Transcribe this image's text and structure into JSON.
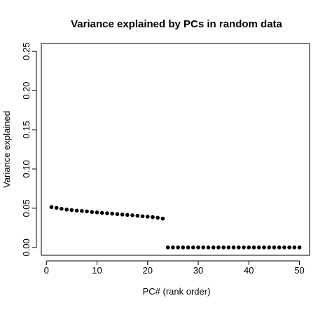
{
  "chart_data": {
    "type": "scatter",
    "title": "Variance explained by PCs in random data",
    "xlabel": "PC# (rank order)",
    "ylabel": "Variance explained",
    "xlim": [
      -1,
      52
    ],
    "ylim": [
      -0.01,
      0.26
    ],
    "x_ticks": [
      0,
      10,
      20,
      30,
      40,
      50
    ],
    "x_tick_labels": [
      "0",
      "10",
      "20",
      "30",
      "40",
      "50"
    ],
    "y_ticks": [
      0.0,
      0.05,
      0.1,
      0.15,
      0.2,
      0.25
    ],
    "y_tick_labels": [
      "0.00",
      "0.05",
      "0.10",
      "0.15",
      "0.20",
      "0.25"
    ],
    "grid": false,
    "marker_color": "#000000",
    "series": [
      {
        "x": [
          1,
          2,
          3,
          4,
          5,
          6,
          7,
          8,
          9,
          10,
          11,
          12,
          13,
          14,
          15,
          16,
          17,
          18,
          19,
          20,
          21,
          22,
          23,
          24,
          25,
          26,
          27,
          28,
          29,
          30,
          31,
          32,
          33,
          34,
          35,
          36,
          37,
          38,
          39,
          40,
          41,
          42,
          43,
          44,
          45,
          46,
          47,
          48,
          49,
          50
        ],
        "values": [
          0.0515,
          0.0505,
          0.0493,
          0.0483,
          0.0476,
          0.047,
          0.0465,
          0.046,
          0.0452,
          0.0447,
          0.0441,
          0.0436,
          0.0431,
          0.0425,
          0.042,
          0.0415,
          0.041,
          0.0404,
          0.0398,
          0.0393,
          0.0387,
          0.0379,
          0.0368,
          0,
          0,
          0,
          0,
          0,
          0,
          0,
          0,
          0,
          0,
          0,
          0,
          0,
          0,
          0,
          0,
          0,
          0,
          0,
          0,
          0,
          0,
          0,
          0,
          0,
          0,
          0
        ]
      }
    ]
  }
}
